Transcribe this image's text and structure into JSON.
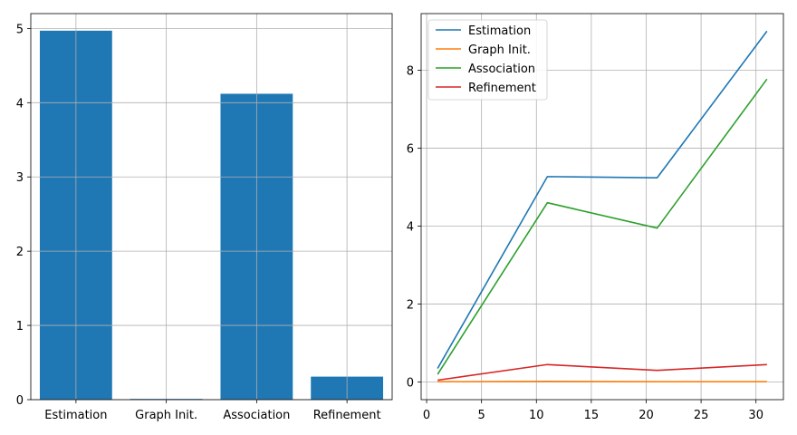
{
  "chart_data": [
    {
      "type": "bar",
      "categories": [
        "Estimation",
        "Graph Init.",
        "Association",
        "Refinement"
      ],
      "values": [
        4.97,
        0.01,
        4.12,
        0.31
      ],
      "ylim": [
        0,
        5.2
      ],
      "yticks": [
        0,
        1,
        2,
        3,
        4,
        5
      ],
      "grid": true,
      "color": "#1f77b4"
    },
    {
      "type": "line",
      "x": [
        1,
        11,
        21,
        31
      ],
      "series": [
        {
          "name": "Estimation",
          "values": [
            0.35,
            5.27,
            5.24,
            9.0
          ],
          "color": "#1f77b4"
        },
        {
          "name": "Graph Init.",
          "values": [
            0.01,
            0.02,
            0.01,
            0.01
          ],
          "color": "#ff7f0e"
        },
        {
          "name": "Association",
          "values": [
            0.2,
            4.6,
            3.95,
            7.77
          ],
          "color": "#2ca02c"
        },
        {
          "name": "Refinement",
          "values": [
            0.05,
            0.45,
            0.3,
            0.45
          ],
          "color": "#d62728"
        }
      ],
      "xlim": [
        -0.5,
        32.5
      ],
      "ylim": [
        -0.45,
        9.45
      ],
      "xticks": [
        0,
        5,
        10,
        15,
        20,
        25,
        30
      ],
      "yticks": [
        0,
        2,
        4,
        6,
        8
      ],
      "grid": true,
      "legend": "top-left"
    }
  ]
}
